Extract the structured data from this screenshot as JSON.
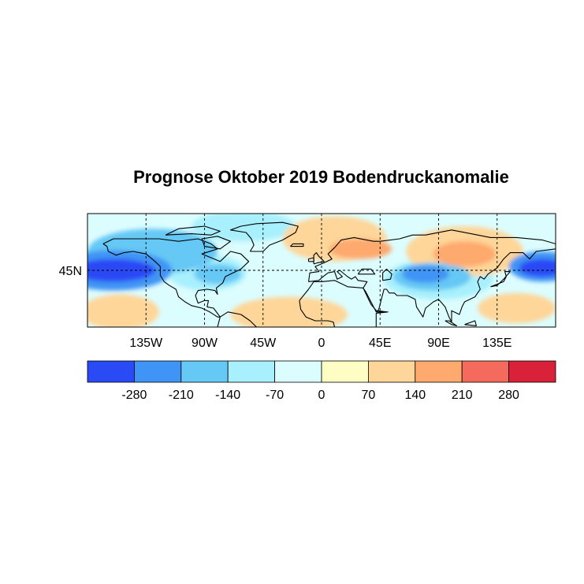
{
  "title": "Prognose Oktober 2019 Bodendruckanomalie",
  "map": {
    "projection": "equirectangular",
    "lon_range": [
      -180,
      180
    ],
    "lat_range": [
      0,
      90
    ],
    "lon_ticks": [
      {
        "lon": -135,
        "label": "135W"
      },
      {
        "lon": -90,
        "label": "90W"
      },
      {
        "lon": -45,
        "label": "45W"
      },
      {
        "lon": 0,
        "label": "0"
      },
      {
        "lon": 45,
        "label": "45E"
      },
      {
        "lon": 90,
        "label": "90E"
      },
      {
        "lon": 135,
        "label": "135E"
      }
    ],
    "lat_ticks": [
      {
        "lat": 45,
        "label": "45N"
      }
    ],
    "grid": "dashed",
    "anomaly_fields": [
      {
        "lon": -160,
        "lat": 45,
        "rlon": 32,
        "rlat": 9,
        "value": -280
      },
      {
        "lon": -160,
        "lat": 45,
        "rlon": 45,
        "rlat": 16,
        "value": -210
      },
      {
        "lon": -130,
        "lat": 60,
        "rlon": 50,
        "rlat": 18,
        "value": -140
      },
      {
        "lon": -80,
        "lat": 42,
        "rlon": 18,
        "rlat": 8,
        "value": -140
      },
      {
        "lon": -88,
        "lat": 43,
        "rlon": 30,
        "rlat": 14,
        "value": -70
      },
      {
        "lon": -60,
        "lat": 80,
        "rlon": 40,
        "rlat": 12,
        "value": -70
      },
      {
        "lon": 170,
        "lat": 47,
        "rlon": 18,
        "rlat": 7,
        "value": -280
      },
      {
        "lon": 170,
        "lat": 48,
        "rlon": 26,
        "rlat": 12,
        "value": -210
      },
      {
        "lon": 80,
        "lat": 42,
        "rlon": 18,
        "rlat": 7,
        "value": -210
      },
      {
        "lon": 85,
        "lat": 40,
        "rlon": 30,
        "rlat": 11,
        "value": -140
      },
      {
        "lon": 90,
        "lat": 38,
        "rlon": 42,
        "rlat": 16,
        "value": -70
      },
      {
        "lon": 30,
        "lat": 62,
        "rlon": 24,
        "rlat": 8,
        "value": 140
      },
      {
        "lon": 10,
        "lat": 70,
        "rlon": 40,
        "rlat": 18,
        "value": 70
      },
      {
        "lon": 110,
        "lat": 58,
        "rlon": 24,
        "rlat": 10,
        "value": 140
      },
      {
        "lon": 110,
        "lat": 60,
        "rlon": 45,
        "rlat": 20,
        "value": 70
      },
      {
        "lon": -25,
        "lat": 10,
        "rlon": 45,
        "rlat": 14,
        "value": 70
      },
      {
        "lon": -155,
        "lat": 12,
        "rlon": 30,
        "rlat": 14,
        "value": 70
      },
      {
        "lon": 150,
        "lat": 15,
        "rlon": 30,
        "rlat": 12,
        "value": 70
      }
    ]
  },
  "colorbar": {
    "levels": [
      -280,
      -210,
      -140,
      -70,
      0,
      70,
      140,
      210,
      280
    ],
    "colors": [
      "#2a4af5",
      "#3f94f5",
      "#66c8f5",
      "#a8f0fd",
      "#dcfdfe",
      "#fefec4",
      "#fed699",
      "#fea96d",
      "#f46b5d",
      "#d9223a"
    ],
    "labels": [
      "-280",
      "-210",
      "-140",
      "-70",
      "0",
      "70",
      "140",
      "210",
      "280"
    ]
  },
  "base_color": "#dcfdfe",
  "land_color": "#000000"
}
